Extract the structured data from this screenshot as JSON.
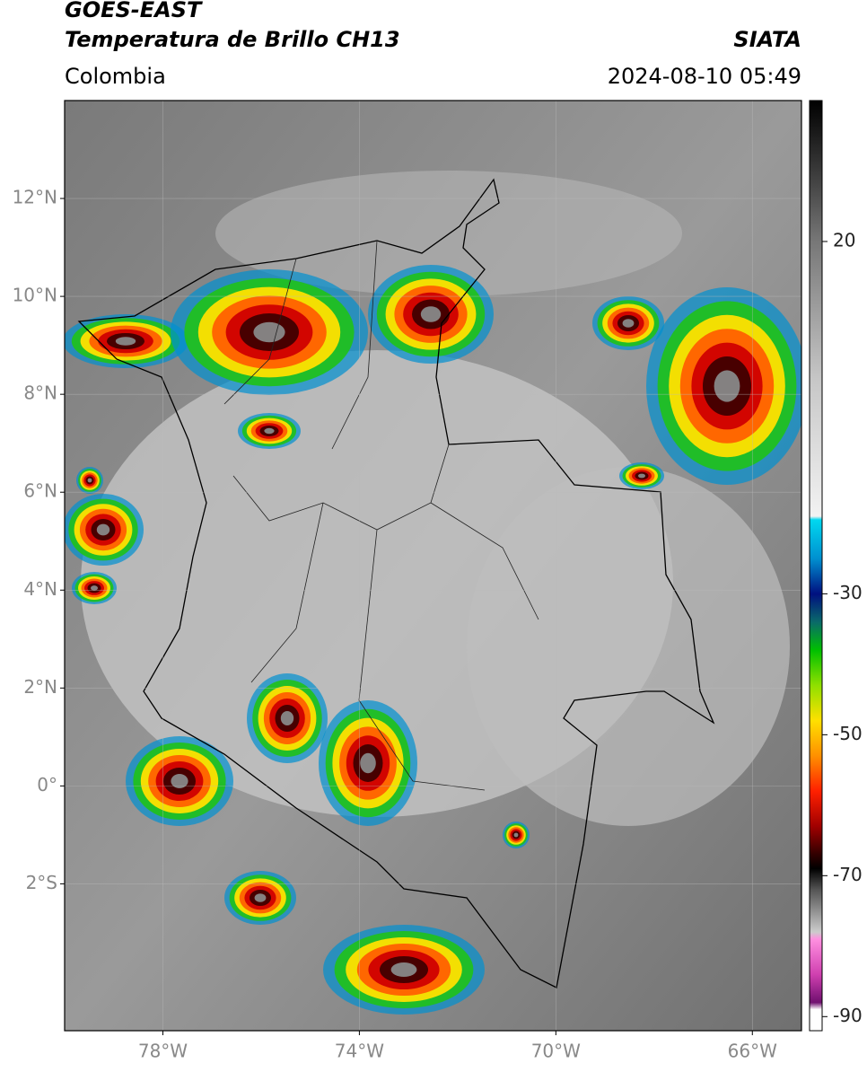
{
  "header": {
    "title": "GOES-EAST",
    "subtitle": "Temperatura de Brillo CH13",
    "region": "Colombia",
    "source": "SIATA",
    "datetime": "2024-08-10 05:49"
  },
  "map": {
    "xlim": [
      -80,
      -65
    ],
    "ylim": [
      -5,
      14
    ],
    "yticks": [
      {
        "value": 12,
        "label": "12°N"
      },
      {
        "value": 10,
        "label": "10°N"
      },
      {
        "value": 8,
        "label": "8°N"
      },
      {
        "value": 6,
        "label": "6°N"
      },
      {
        "value": 4,
        "label": "4°N"
      },
      {
        "value": 2,
        "label": "2°N"
      },
      {
        "value": 0,
        "label": "0°"
      },
      {
        "value": -2,
        "label": "2°S"
      }
    ],
    "xticks": [
      {
        "value": -78,
        "label": "78°W"
      },
      {
        "value": -74,
        "label": "74°W"
      },
      {
        "value": -70,
        "label": "70°W"
      },
      {
        "value": -66,
        "label": "66°W"
      }
    ],
    "grid": true
  },
  "colorbar": {
    "clim": [
      -92,
      40
    ],
    "ticks": [
      20,
      -30,
      -50,
      -70,
      -90
    ]
  }
}
